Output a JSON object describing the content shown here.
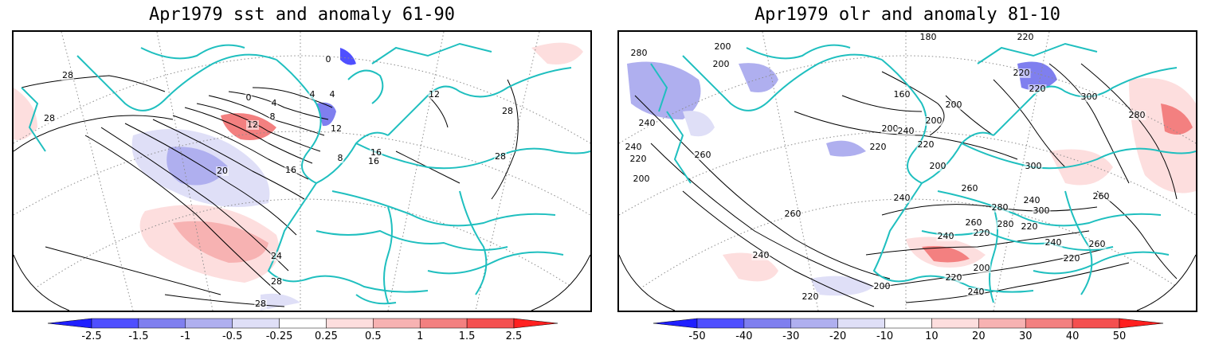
{
  "panels": [
    {
      "title": "Apr1979 sst and anomaly 61-90",
      "contour_labels": [
        "28",
        "28",
        "0",
        "4",
        "8",
        "12",
        "20",
        "16",
        "16",
        "12",
        "28",
        "28",
        "24",
        "28",
        "28",
        "0",
        "4",
        "8",
        "12",
        "4",
        "16"
      ],
      "colorbar": {
        "labels": [
          "-2.5",
          "-1.5",
          "-1",
          "-0.5",
          "-0.25",
          "0.25",
          "0.5",
          "1",
          "1.5",
          "2.5"
        ],
        "colors": [
          "#1f1fff",
          "#4f4fff",
          "#7f7fef",
          "#afafef",
          "#dfdff7",
          "#ffffff",
          "#fddede",
          "#f7b2b2",
          "#f38080",
          "#f45050",
          "#ff2020"
        ]
      }
    },
    {
      "title": "Apr1979 olr and anomaly 81-10",
      "contour_labels": [
        "280",
        "200",
        "200",
        "180",
        "220",
        "240",
        "260",
        "160",
        "200",
        "200",
        "200",
        "220",
        "220",
        "300",
        "280",
        "240",
        "220",
        "200",
        "260",
        "220",
        "240",
        "260",
        "280",
        "300",
        "240",
        "220",
        "200",
        "260",
        "240",
        "280",
        "300",
        "260",
        "240",
        "220",
        "200",
        "220",
        "240",
        "260",
        "220",
        "240",
        "220",
        "200",
        "220",
        "240"
      ],
      "colorbar": {
        "labels": [
          "-50",
          "-40",
          "-30",
          "-20",
          "-10",
          "10",
          "20",
          "30",
          "40",
          "50"
        ],
        "colors": [
          "#1f1fff",
          "#4f4fff",
          "#7f7fef",
          "#afafef",
          "#dfdff7",
          "#ffffff",
          "#fddede",
          "#f7b2b2",
          "#f38080",
          "#f45050",
          "#ff2020"
        ]
      }
    }
  ],
  "colors": {
    "coastline": "#1fbfbf",
    "grid": "#8c8c8c",
    "contour": "#000000"
  }
}
